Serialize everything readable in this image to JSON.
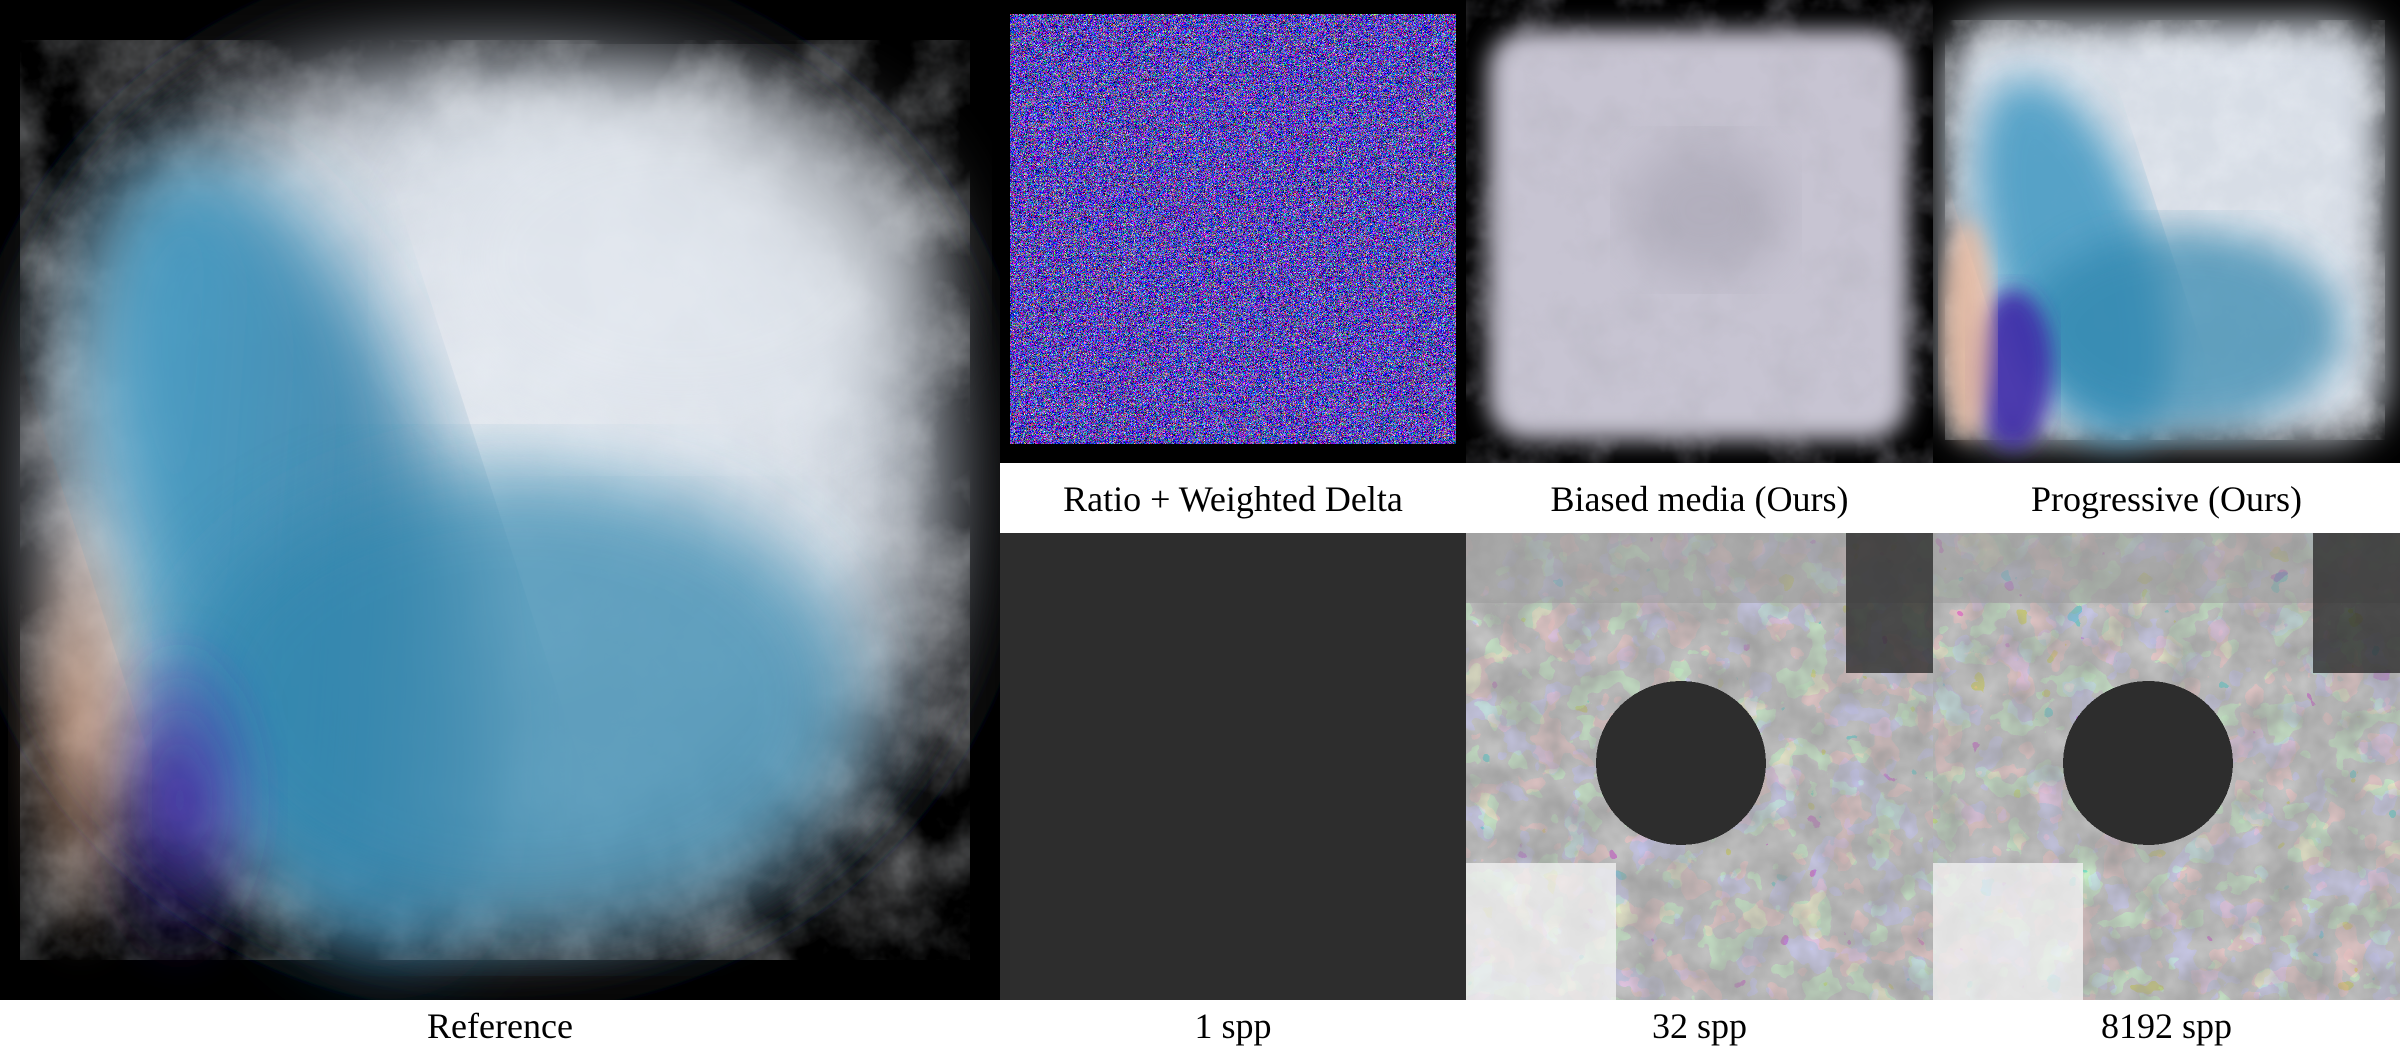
{
  "figure": {
    "panels": {
      "reference": {
        "label": "Reference",
        "kind": "smoke-render-reference"
      },
      "ratio_weighted_delta": {
        "label": "Ratio + Weighted Delta",
        "kind": "noisy-render"
      },
      "biased_media": {
        "label": "Biased media (Ours)",
        "kind": "smooth-gray-render"
      },
      "progressive": {
        "label": "Progressive (Ours)",
        "kind": "smoke-render-converged"
      }
    },
    "sample_counts": [
      {
        "id": "spp-1",
        "label": "1 spp"
      },
      {
        "id": "spp-32",
        "label": "32 spp"
      },
      {
        "id": "spp-8192",
        "label": "8192 spp"
      }
    ],
    "colors": {
      "background": "#000000",
      "smoke_white": "#dfe6ee",
      "smoke_blue": "#3a8fb5",
      "smoke_violet": "#3b2a9a",
      "smoke_peach": "#e0b49a",
      "map_dark": "#2d2d2d",
      "map_mid": "#9a9a9a",
      "map_light": "#d8d8d8",
      "map_white": "#f7f7f7"
    }
  }
}
